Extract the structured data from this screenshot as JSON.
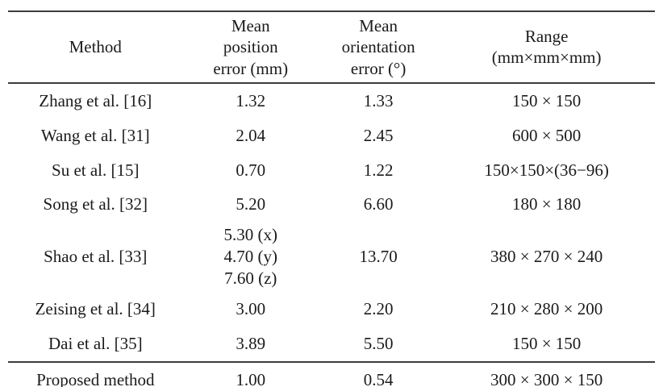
{
  "page": {
    "background_color": "#ffffff",
    "text_color": "#1b1b1b",
    "rule_color": "#3c3c3c"
  },
  "table": {
    "header": {
      "method": "Method",
      "position_error": "Mean\nposition\nerror (mm)",
      "orientation_error": "Mean\norientation\nerror (°)",
      "range": "Range\n(mm×mm×mm)"
    },
    "rows": [
      {
        "method": "Zhang et al. [16]",
        "position_error": "1.32",
        "orientation_error": "1.33",
        "range": "150 × 150"
      },
      {
        "method": "Wang et al. [31]",
        "position_error": "2.04",
        "orientation_error": "2.45",
        "range": "600 × 500"
      },
      {
        "method": "Su et al. [15]",
        "position_error": "0.70",
        "orientation_error": "1.22",
        "range": "150×150×(36−96)"
      },
      {
        "method": "Song et al. [32]",
        "position_error": "5.20",
        "orientation_error": "6.60",
        "range": "180 × 180"
      },
      {
        "method": "Shao et al. [33]",
        "position_error": "5.30 (x)\n4.70 (y)\n7.60 (z)",
        "orientation_error": "13.70",
        "range": "380 × 270 × 240"
      },
      {
        "method": "Zeising et al. [34]",
        "position_error": "3.00",
        "orientation_error": "2.20",
        "range": "210 × 280 × 200"
      },
      {
        "method": "Dai et al. [35]",
        "position_error": "3.89",
        "orientation_error": "5.50",
        "range": "150 × 150"
      },
      {
        "method": "Proposed method",
        "position_error": "1.00",
        "orientation_error": "0.54",
        "range": "300 × 300 × 150"
      }
    ]
  }
}
